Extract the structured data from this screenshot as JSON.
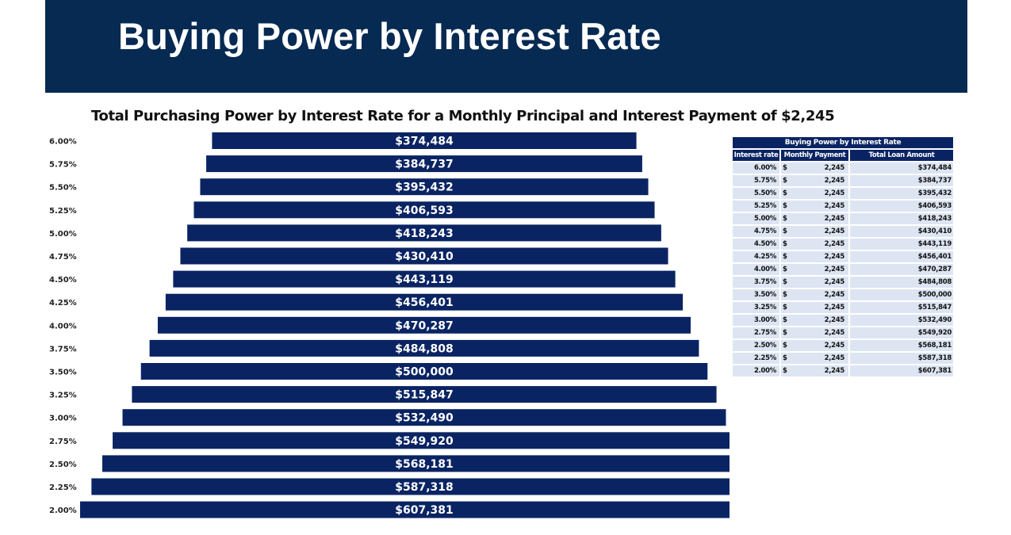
{
  "header": {
    "title": "Buying Power by Interest Rate"
  },
  "chart_data": {
    "type": "bar",
    "orientation": "horizontal-centered",
    "title": "Total Purchasing Power by Interest Rate for a Monthly Principal and Interest Payment of $2,245",
    "xlabel": "",
    "ylabel": "",
    "categories": [
      "6.00%",
      "5.75%",
      "5.50%",
      "5.25%",
      "5.00%",
      "4.75%",
      "4.50%",
      "4.25%",
      "4.00%",
      "3.75%",
      "3.50%",
      "3.25%",
      "3.00%",
      "2.75%",
      "2.50%",
      "2.25%",
      "2.00%"
    ],
    "values": [
      374484,
      384737,
      395432,
      406593,
      418243,
      430410,
      443119,
      456401,
      470287,
      484808,
      500000,
      515847,
      532490,
      549920,
      568181,
      587318,
      607381
    ],
    "labels": [
      "$374,484",
      "$384,737",
      "$395,432",
      "$406,593",
      "$418,243",
      "$430,410",
      "$443,119",
      "$456,401",
      "$470,287",
      "$484,808",
      "$500,000",
      "$515,847",
      "$532,490",
      "$549,920",
      "$568,181",
      "$587,318",
      "$607,381"
    ],
    "bar_color": "#0a2463",
    "grid": false,
    "legend": "none"
  },
  "table": {
    "title": "Buying Power by Interest Rate",
    "headers": [
      "Interest rate",
      "Monthly Payment",
      "Total Loan Amount"
    ],
    "currency_symbol": "$",
    "rows": [
      {
        "rate": "6.00%",
        "payment": "2,245",
        "amount": "$374,484"
      },
      {
        "rate": "5.75%",
        "payment": "2,245",
        "amount": "$384,737"
      },
      {
        "rate": "5.50%",
        "payment": "2,245",
        "amount": "$395,432"
      },
      {
        "rate": "5.25%",
        "payment": "2,245",
        "amount": "$406,593"
      },
      {
        "rate": "5.00%",
        "payment": "2,245",
        "amount": "$418,243"
      },
      {
        "rate": "4.75%",
        "payment": "2,245",
        "amount": "$430,410"
      },
      {
        "rate": "4.50%",
        "payment": "2,245",
        "amount": "$443,119"
      },
      {
        "rate": "4.25%",
        "payment": "2,245",
        "amount": "$456,401"
      },
      {
        "rate": "4.00%",
        "payment": "2,245",
        "amount": "$470,287"
      },
      {
        "rate": "3.75%",
        "payment": "2,245",
        "amount": "$484,808"
      },
      {
        "rate": "3.50%",
        "payment": "2,245",
        "amount": "$500,000"
      },
      {
        "rate": "3.25%",
        "payment": "2,245",
        "amount": "$515,847"
      },
      {
        "rate": "3.00%",
        "payment": "2,245",
        "amount": "$532,490"
      },
      {
        "rate": "2.75%",
        "payment": "2,245",
        "amount": "$549,920"
      },
      {
        "rate": "2.50%",
        "payment": "2,245",
        "amount": "$568,181"
      },
      {
        "rate": "2.25%",
        "payment": "2,245",
        "amount": "$587,318"
      },
      {
        "rate": "2.00%",
        "payment": "2,245",
        "amount": "$607,381"
      }
    ]
  },
  "colors": {
    "header_bg": "#062a52",
    "bar": "#0a2463",
    "table_cell": "#dde5f3"
  }
}
